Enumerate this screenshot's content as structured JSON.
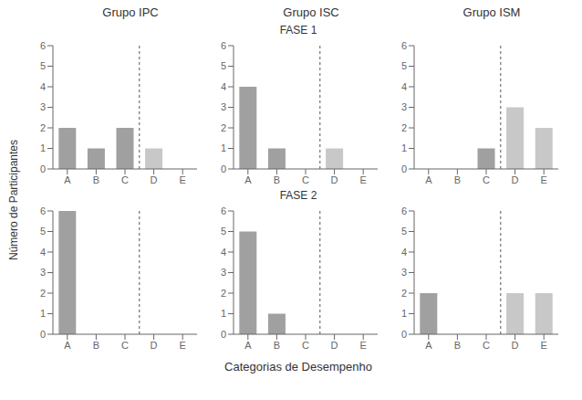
{
  "chart_data": [
    {
      "type": "bar",
      "title": "Grupo IPC",
      "subtitle": "FASE 1",
      "ylabel": "Número de Participantes",
      "categories": [
        "A",
        "B",
        "C",
        "D",
        "E"
      ],
      "values": [
        2,
        1,
        2,
        1,
        0
      ],
      "colors": [
        "#a0a0a0",
        "#a0a0a0",
        "#a0a0a0",
        "#c8c8c8",
        "#c8c8c8"
      ],
      "ylim": [
        0,
        6
      ],
      "yticks": [
        0,
        1,
        2,
        3,
        4,
        5,
        6
      ],
      "grid": false
    },
    {
      "type": "bar",
      "title": "Grupo ISC",
      "categories": [
        "A",
        "B",
        "C",
        "D",
        "E"
      ],
      "values": [
        4,
        1,
        0,
        1,
        0
      ],
      "colors": [
        "#a0a0a0",
        "#a0a0a0",
        "#a0a0a0",
        "#c8c8c8",
        "#c8c8c8"
      ],
      "ylim": [
        0,
        6
      ],
      "yticks": [
        0,
        1,
        2,
        3,
        4,
        5,
        6
      ],
      "grid": false
    },
    {
      "type": "bar",
      "title": "Grupo ISM",
      "categories": [
        "A",
        "B",
        "C",
        "D",
        "E"
      ],
      "values": [
        0,
        0,
        1,
        3,
        2
      ],
      "colors": [
        "#a0a0a0",
        "#a0a0a0",
        "#a0a0a0",
        "#c8c8c8",
        "#c8c8c8"
      ],
      "ylim": [
        0,
        6
      ],
      "yticks": [
        0,
        1,
        2,
        3,
        4,
        5,
        6
      ],
      "grid": false
    },
    {
      "type": "bar",
      "subtitle": "FASE 2",
      "categories": [
        "A",
        "B",
        "C",
        "D",
        "E"
      ],
      "values": [
        6,
        0,
        0,
        0,
        0
      ],
      "colors": [
        "#a0a0a0",
        "#a0a0a0",
        "#a0a0a0",
        "#c8c8c8",
        "#c8c8c8"
      ],
      "ylim": [
        0,
        6
      ],
      "yticks": [
        0,
        1,
        2,
        3,
        4,
        5,
        6
      ],
      "grid": false
    },
    {
      "type": "bar",
      "xlabel": "Categorias de Desempenho",
      "categories": [
        "A",
        "B",
        "C",
        "D",
        "E"
      ],
      "values": [
        5,
        1,
        0,
        0,
        0
      ],
      "colors": [
        "#a0a0a0",
        "#a0a0a0",
        "#a0a0a0",
        "#c8c8c8",
        "#c8c8c8"
      ],
      "ylim": [
        0,
        6
      ],
      "yticks": [
        0,
        1,
        2,
        3,
        4,
        5,
        6
      ],
      "grid": false
    },
    {
      "type": "bar",
      "categories": [
        "A",
        "B",
        "C",
        "D",
        "E"
      ],
      "values": [
        2,
        0,
        0,
        2,
        2
      ],
      "colors": [
        "#a0a0a0",
        "#a0a0a0",
        "#a0a0a0",
        "#c8c8c8",
        "#c8c8c8"
      ],
      "ylim": [
        0,
        6
      ],
      "yticks": [
        0,
        1,
        2,
        3,
        4,
        5,
        6
      ],
      "grid": false
    }
  ]
}
